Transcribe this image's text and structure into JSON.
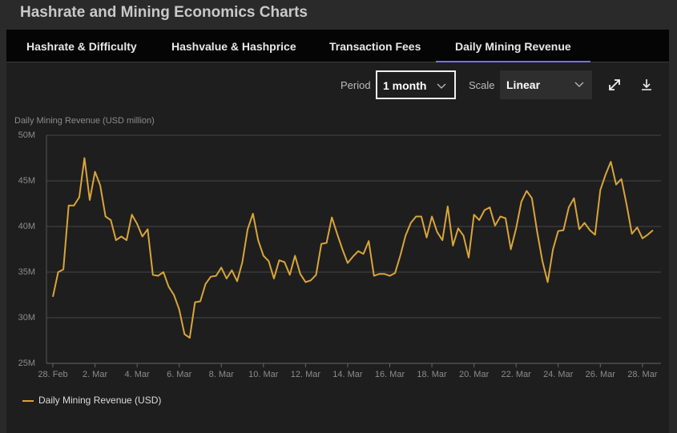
{
  "header": {
    "title": "Hashrate and Mining Economics Charts"
  },
  "tabs": [
    "Hashrate & Difficulty",
    "Hashvalue & Hashprice",
    "Transaction Fees",
    "Daily Mining Revenue"
  ],
  "controls": {
    "period_label": "Period",
    "period_value": "1 month",
    "scale_label": "Scale",
    "scale_value": "Linear"
  },
  "chart_data": {
    "type": "line",
    "y_label": "Daily Mining Revenue (USD million)",
    "categories": [
      "28. Feb",
      null,
      null,
      null,
      null,
      null,
      null,
      null,
      "2. Mar",
      null,
      null,
      null,
      null,
      null,
      null,
      null,
      "4. Mar",
      null,
      null,
      null,
      null,
      null,
      null,
      null,
      "6. Mar",
      null,
      null,
      null,
      null,
      null,
      null,
      null,
      "8. Mar",
      null,
      null,
      null,
      null,
      null,
      null,
      null,
      "10. Mar",
      null,
      null,
      null,
      null,
      null,
      null,
      null,
      "12. Mar",
      null,
      null,
      null,
      null,
      null,
      null,
      null,
      "14. Mar",
      null,
      null,
      null,
      null,
      null,
      null,
      null,
      "16. Mar",
      null,
      null,
      null,
      null,
      null,
      null,
      null,
      "18. Mar",
      null,
      null,
      null,
      null,
      null,
      null,
      null,
      "20. Mar",
      null,
      null,
      null,
      null,
      null,
      null,
      null,
      "22. Mar",
      null,
      null,
      null,
      null,
      null,
      null,
      null,
      "24. Mar",
      null,
      null,
      null,
      null,
      null,
      null,
      null,
      "26. Mar",
      null,
      null,
      null,
      null,
      null,
      null,
      null,
      "28. Mar",
      null,
      null
    ],
    "series": [
      {
        "name": "Daily Mining Revenue (USD)",
        "color": "#d9a53a",
        "values": [
          32.3,
          35.0,
          35.3,
          42.3,
          42.3,
          43.2,
          47.5,
          42.9,
          46.0,
          44.5,
          41.1,
          40.7,
          38.5,
          38.9,
          38.5,
          41.3,
          40.3,
          38.9,
          39.7,
          34.7,
          34.6,
          35.0,
          33.4,
          32.5,
          30.9,
          28.2,
          27.8,
          31.7,
          31.8,
          33.7,
          34.5,
          34.6,
          35.5,
          34.3,
          35.2,
          34.0,
          36.1,
          39.7,
          41.4,
          38.5,
          36.8,
          36.2,
          34.3,
          36.3,
          36.1,
          34.7,
          36.8,
          34.8,
          33.9,
          34.1,
          34.7,
          38.1,
          38.2,
          41.0,
          39.2,
          37.5,
          36.0,
          36.7,
          37.3,
          37.0,
          38.4,
          34.6,
          34.8,
          34.8,
          34.6,
          34.9,
          36.8,
          39.0,
          40.4,
          41.1,
          41.1,
          38.8,
          41.1,
          39.4,
          38.5,
          42.2,
          37.9,
          39.8,
          39.0,
          36.6,
          41.3,
          40.7,
          41.8,
          42.1,
          40.1,
          41.1,
          40.9,
          37.5,
          39.8,
          42.7,
          43.9,
          43.1,
          39.4,
          36.2,
          33.9,
          37.5,
          39.5,
          39.6,
          42.1,
          43.1,
          39.7,
          40.4,
          39.6,
          39.1,
          44.0,
          45.7,
          47.1,
          44.6,
          45.2,
          42.4,
          39.2,
          39.9,
          38.7,
          39.1,
          39.6
        ]
      }
    ],
    "ylim": [
      25,
      50
    ],
    "yticks": [
      {
        "value": 25,
        "label": "25M"
      },
      {
        "value": 30,
        "label": "30M"
      },
      {
        "value": 35,
        "label": "35M"
      },
      {
        "value": 40,
        "label": "40M"
      },
      {
        "value": 45,
        "label": "45M"
      },
      {
        "value": 50,
        "label": "50M"
      }
    ],
    "grid": true
  }
}
